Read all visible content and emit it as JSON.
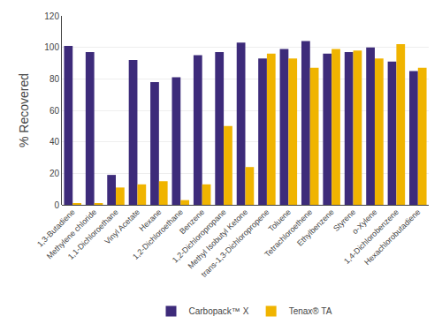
{
  "chart_data": {
    "type": "bar",
    "categories": [
      "1,3-Butadiene",
      "Methylene chloride",
      "1,1-Dichloroethane",
      "Vinyl Acetate",
      "Hexane",
      "1,2-Dichloroethane",
      "Benzene",
      "1,2-Dichloropropane",
      "Methyl Isobutyl Ketone",
      "trans-1,3-Dichloropropene",
      "Toluene",
      "Tetrachloroethene",
      "Ethylbenzene",
      "Styrene",
      "o-Xylene",
      "1,4-Dichlorobenzene",
      "Hexachlorobutadiene"
    ],
    "series": [
      {
        "name": "Carbopack™ X",
        "color": "#3d2b7a",
        "values": [
          101,
          97,
          19,
          92,
          78,
          81,
          95,
          97,
          103,
          93,
          99,
          104,
          96,
          97,
          100,
          91,
          85
        ]
      },
      {
        "name": "Tenax® TA",
        "color": "#f0b400",
        "values": [
          1,
          1,
          11,
          13,
          15,
          3,
          13,
          50,
          24,
          96,
          93,
          87,
          99,
          98,
          93,
          102,
          87
        ]
      }
    ],
    "ylabel": "% Recovered",
    "ylim": [
      0,
      120
    ],
    "yticks": [
      0,
      20,
      40,
      60,
      80,
      100,
      120
    ],
    "grid": true,
    "legend": "bottom"
  }
}
